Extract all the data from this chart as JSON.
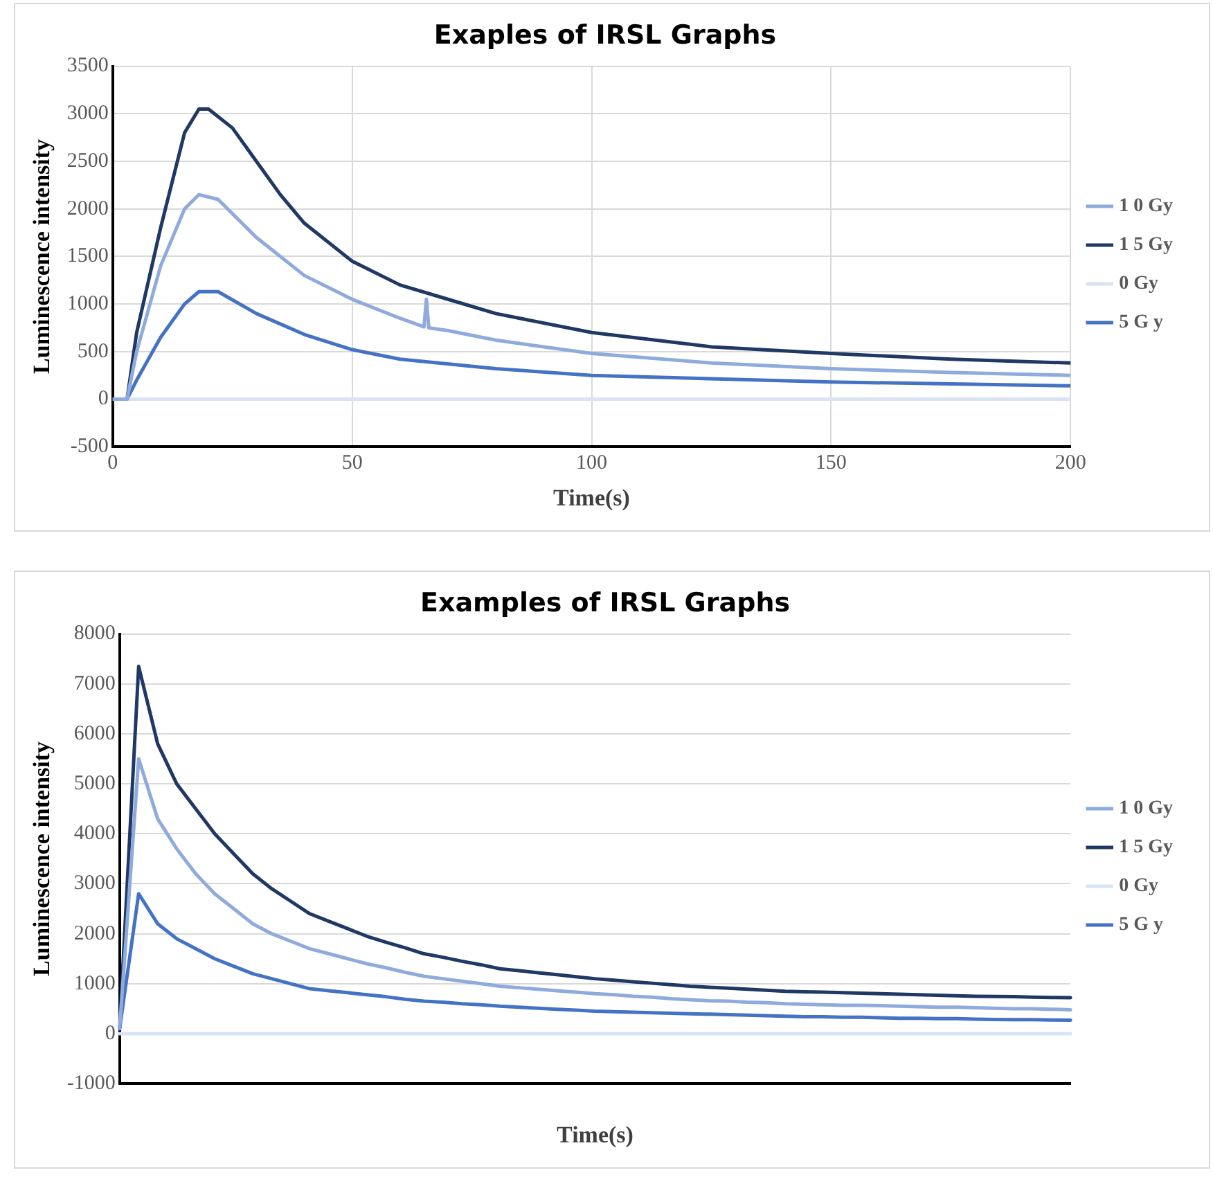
{
  "chart_data": [
    {
      "type": "line",
      "title": "Exaples of IRSL Graphs",
      "xlabel": "Time(s)",
      "ylabel": "Luminescence intensity",
      "xlim": [
        0,
        200
      ],
      "xticks": [
        0,
        50,
        100,
        150,
        200
      ],
      "ylim": [
        -500,
        3500
      ],
      "yticks": [
        -500,
        0,
        500,
        1000,
        1500,
        2000,
        2500,
        3000,
        3500
      ],
      "grid": true,
      "legend": "right",
      "marker": "none",
      "series": [
        {
          "name": "1 0 Gy",
          "color": "#8faadc",
          "x": [
            0,
            3,
            5,
            10,
            15,
            18,
            22,
            30,
            40,
            50,
            60,
            65,
            65.5,
            66,
            70,
            80,
            100,
            125,
            150,
            175,
            200
          ],
          "values": [
            0,
            0,
            500,
            1400,
            2000,
            2150,
            2100,
            1700,
            1300,
            1050,
            850,
            760,
            1050,
            750,
            720,
            620,
            480,
            380,
            320,
            280,
            250
          ]
        },
        {
          "name": "1 5 Gy",
          "color": "#203864",
          "x": [
            0,
            3,
            5,
            10,
            15,
            18,
            20,
            25,
            30,
            35,
            40,
            50,
            60,
            70,
            80,
            100,
            125,
            150,
            175,
            200
          ],
          "values": [
            0,
            0,
            700,
            1800,
            2800,
            3050,
            3050,
            2850,
            2500,
            2150,
            1850,
            1450,
            1200,
            1050,
            900,
            700,
            550,
            480,
            420,
            380
          ]
        },
        {
          "name": "0 Gy",
          "color": "#dae3f3",
          "x": [
            0,
            50,
            100,
            150,
            200
          ],
          "values": [
            0,
            0,
            0,
            0,
            0
          ]
        },
        {
          "name": "5 G y",
          "color": "#4472c4",
          "x": [
            0,
            3,
            5,
            10,
            15,
            18,
            22,
            30,
            40,
            50,
            60,
            80,
            100,
            150,
            200
          ],
          "values": [
            0,
            0,
            200,
            650,
            1000,
            1130,
            1130,
            900,
            680,
            520,
            420,
            320,
            250,
            180,
            140
          ]
        }
      ]
    },
    {
      "type": "line",
      "title": "Examples of IRSL Graphs",
      "xlabel": "Time(s)",
      "ylabel": "Luminescence intensity",
      "categories": [
        null,
        null,
        null,
        null,
        null,
        null,
        null,
        null,
        null,
        null,
        null,
        null,
        null,
        null,
        null,
        null,
        null,
        null,
        null,
        null,
        null,
        null,
        null,
        null,
        null,
        null,
        null,
        null,
        null,
        null,
        null,
        null,
        null,
        null,
        null,
        null,
        null,
        null,
        null,
        null,
        null,
        null,
        null,
        null,
        null,
        null,
        null,
        null,
        null,
        null,
        null
      ],
      "ylim": [
        -1000,
        8000
      ],
      "yticks": [
        -1000,
        0,
        1000,
        2000,
        3000,
        4000,
        5000,
        6000,
        7000,
        8000
      ],
      "grid": "y",
      "legend": "right",
      "marker": "none",
      "series": [
        {
          "name": "1 0 Gy",
          "color": "#8faadc",
          "values": [
            100,
            5500,
            4300,
            3700,
            3200,
            2800,
            2500,
            2200,
            2000,
            1850,
            1700,
            1600,
            1500,
            1400,
            1320,
            1230,
            1150,
            1100,
            1050,
            1000,
            950,
            920,
            890,
            860,
            830,
            800,
            780,
            750,
            730,
            700,
            680,
            660,
            650,
            630,
            620,
            600,
            590,
            580,
            570,
            570,
            560,
            550,
            540,
            530,
            530,
            520,
            510,
            500,
            500,
            490,
            480
          ]
        },
        {
          "name": "1 5 Gy",
          "color": "#203864",
          "values": [
            100,
            7350,
            5800,
            5000,
            4500,
            4000,
            3600,
            3200,
            2900,
            2650,
            2400,
            2250,
            2100,
            1950,
            1830,
            1720,
            1600,
            1530,
            1450,
            1380,
            1300,
            1260,
            1220,
            1180,
            1140,
            1100,
            1070,
            1040,
            1010,
            980,
            950,
            930,
            910,
            890,
            870,
            850,
            840,
            830,
            820,
            810,
            800,
            790,
            780,
            770,
            760,
            750,
            745,
            740,
            730,
            725,
            720
          ]
        },
        {
          "name": "0 Gy",
          "color": "#dae3f3",
          "values": [
            0,
            0,
            0,
            0,
            0,
            0,
            0,
            0,
            0,
            0,
            0,
            0,
            0,
            0,
            0,
            0,
            0,
            0,
            0,
            0,
            0,
            0,
            0,
            0,
            0,
            0,
            0,
            0,
            0,
            0,
            0,
            0,
            0,
            0,
            0,
            0,
            0,
            0,
            0,
            0,
            0,
            0,
            0,
            0,
            0,
            0,
            0,
            0,
            0,
            0,
            0
          ]
        },
        {
          "name": "5 G y",
          "color": "#4472c4",
          "values": [
            100,
            2800,
            2200,
            1900,
            1700,
            1500,
            1350,
            1200,
            1100,
            1000,
            900,
            860,
            820,
            780,
            740,
            690,
            650,
            630,
            600,
            580,
            550,
            530,
            510,
            490,
            470,
            450,
            440,
            430,
            420,
            410,
            400,
            390,
            380,
            370,
            360,
            350,
            340,
            340,
            330,
            330,
            320,
            310,
            310,
            300,
            300,
            290,
            285,
            280,
            280,
            275,
            270
          ]
        }
      ]
    }
  ]
}
